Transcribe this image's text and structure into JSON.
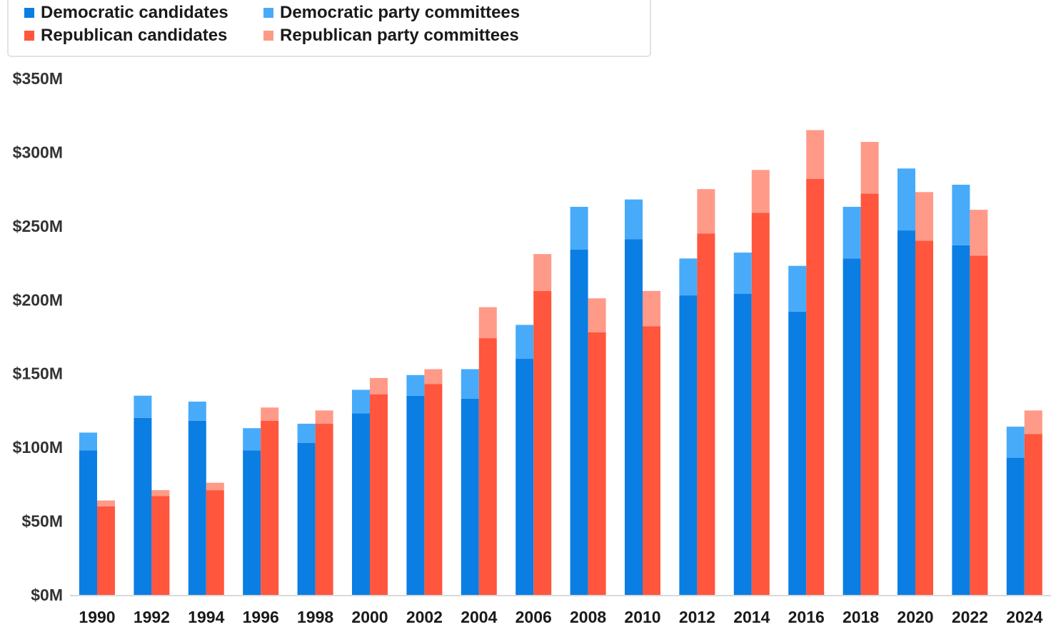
{
  "chart_data": {
    "type": "bar",
    "stacked_grouped": true,
    "title": "",
    "xlabel": "",
    "ylabel": "",
    "ylim": [
      0,
      350
    ],
    "y_ticks": [
      "$0M",
      "$50M",
      "$100M",
      "$150M",
      "$200M",
      "$250M",
      "$300M",
      "$350M"
    ],
    "grid": false,
    "legend_position": "top-left",
    "categories": [
      "1990",
      "1992",
      "1994",
      "1996",
      "1998",
      "2000",
      "2002",
      "2004",
      "2006",
      "2008",
      "2010",
      "2012",
      "2014",
      "2016",
      "2018",
      "2020",
      "2022",
      "2024"
    ],
    "series": [
      {
        "name": "Democratic candidates",
        "group": "Democratic",
        "color": "#0a7ee3",
        "values": [
          98,
          120,
          118,
          98,
          103,
          123,
          135,
          133,
          160,
          234,
          241,
          203,
          204,
          192,
          228,
          247,
          237,
          93
        ]
      },
      {
        "name": "Democratic party committees",
        "group": "Democratic",
        "color": "#47abfa",
        "values": [
          12,
          15,
          13,
          15,
          13,
          16,
          14,
          20,
          23,
          29,
          27,
          25,
          28,
          31,
          35,
          42,
          41,
          21
        ]
      },
      {
        "name": "Republican candidates",
        "group": "Republican",
        "color": "#ff563d",
        "values": [
          60,
          67,
          71,
          118,
          116,
          136,
          143,
          174,
          206,
          178,
          182,
          245,
          259,
          282,
          272,
          240,
          230,
          109
        ]
      },
      {
        "name": "Republican party committees",
        "group": "Republican",
        "color": "#ff9a88",
        "values": [
          4,
          4,
          5,
          9,
          9,
          11,
          10,
          21,
          25,
          23,
          24,
          30,
          29,
          33,
          35,
          33,
          31,
          16
        ]
      }
    ]
  }
}
